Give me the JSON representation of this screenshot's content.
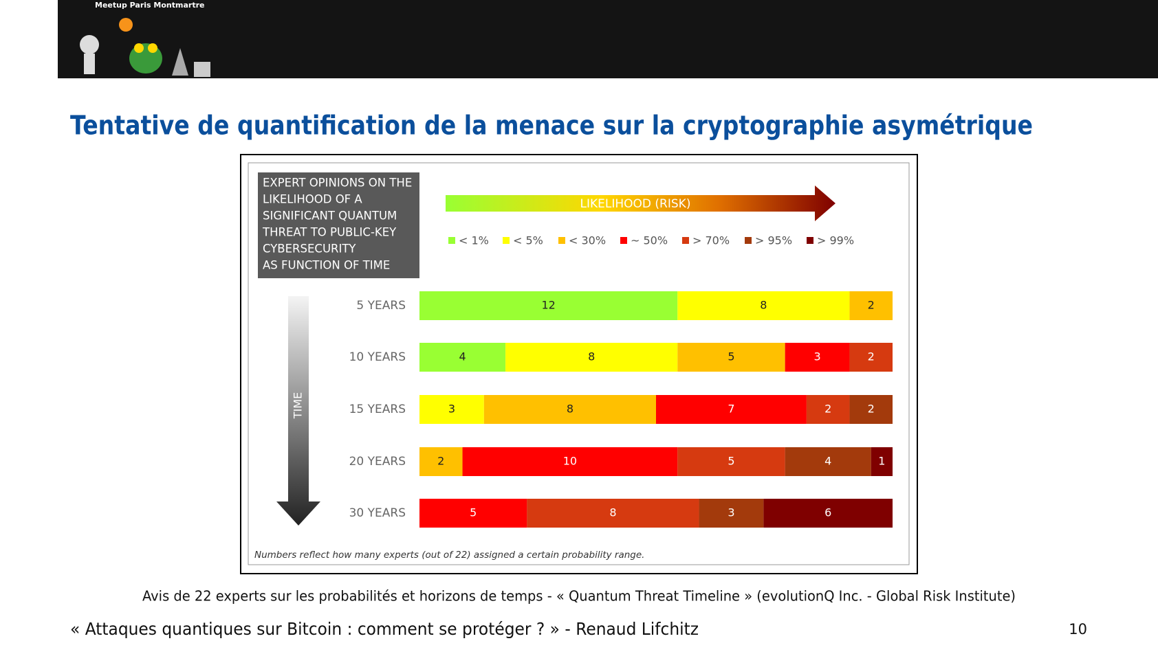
{
  "header": {
    "logo_text": "Meetup Paris Montmartre"
  },
  "slide": {
    "title": "Tentative de quantification de la menace sur la cryptographie asymétrique",
    "caption": "Avis de 22 experts sur les probabilités et horizons de temps - « Quantum Threat Timeline » (evolutionQ Inc. - Global Risk Institute)",
    "footer": "« Attaques quantiques sur Bitcoin : comment se protéger ? » - Renaud Lifchitz",
    "page_number": 10
  },
  "chart_data": {
    "type": "stacked-bar-horizontal",
    "title_lines": [
      "EXPERT OPINIONS ON THE",
      "LIKELIHOOD OF A",
      "SIGNIFICANT QUANTUM",
      "THREAT TO PUBLIC-KEY",
      "CYBERSECURITY",
      "AS FUNCTION OF TIME"
    ],
    "likelihood_label": "LIKELIHOOD (RISK)",
    "time_label": "TIME",
    "note": "Numbers reflect how many experts (out of 22) assigned a certain probability range.",
    "categories": [
      "5 YEARS",
      "10 YEARS",
      "15 YEARS",
      "20 YEARS",
      "30 YEARS"
    ],
    "series": [
      {
        "name": "< 1%",
        "color": "#99ff33",
        "values": [
          12,
          4,
          null,
          null,
          null
        ]
      },
      {
        "name": "< 5%",
        "color": "#ffff00",
        "values": [
          8,
          8,
          3,
          null,
          null
        ]
      },
      {
        "name": "< 30%",
        "color": "#ffc000",
        "values": [
          2,
          5,
          8,
          2,
          null
        ]
      },
      {
        "name": "~ 50%",
        "color": "#ff0000",
        "values": [
          null,
          3,
          7,
          10,
          5
        ]
      },
      {
        "name": "> 70%",
        "color": "#d63a10",
        "values": [
          null,
          2,
          2,
          5,
          8
        ]
      },
      {
        "name": "> 95%",
        "color": "#a33a0c",
        "values": [
          null,
          null,
          2,
          4,
          3
        ]
      },
      {
        "name": "> 99%",
        "color": "#7f0000",
        "values": [
          null,
          null,
          null,
          1,
          6
        ]
      }
    ]
  }
}
